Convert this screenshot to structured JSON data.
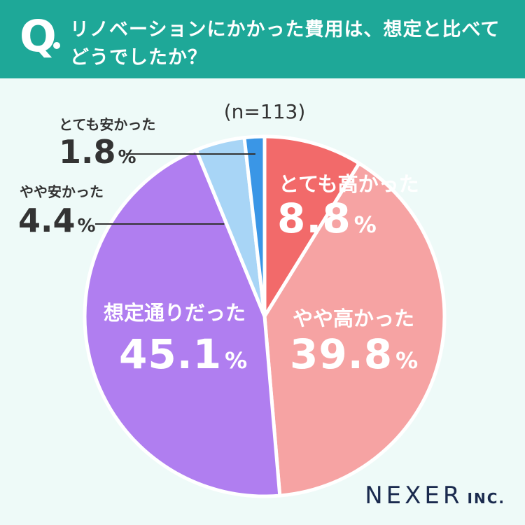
{
  "question": {
    "mark": "Q",
    "line1": "リノベーションにかかった費用は、想定と比べて",
    "line2": "どうでしたか？"
  },
  "sample_size": "(n=113)",
  "brand": {
    "name": "NEXER",
    "suffix": "INC."
  },
  "colors": {
    "header": "#1ea898",
    "background": "#eefaf8",
    "slices": [
      "#f26a6a",
      "#f6a3a3",
      "#b07ef0",
      "#a8d5f6",
      "#3a96e6"
    ]
  },
  "chart_data": {
    "type": "pie",
    "title": "リノベーションにかかった費用は、想定と比べてどうでしたか？",
    "n": 113,
    "unit": "%",
    "categories": [
      "とても高かった",
      "やや高かった",
      "想定通りだった",
      "やや安かった",
      "とても安かった"
    ],
    "values": [
      8.8,
      39.8,
      45.1,
      4.4,
      1.8
    ],
    "value_labels": [
      "8.8",
      "39.8",
      "45.1",
      "4.4",
      "1.8"
    ],
    "start": "top",
    "direction": "clockwise"
  }
}
